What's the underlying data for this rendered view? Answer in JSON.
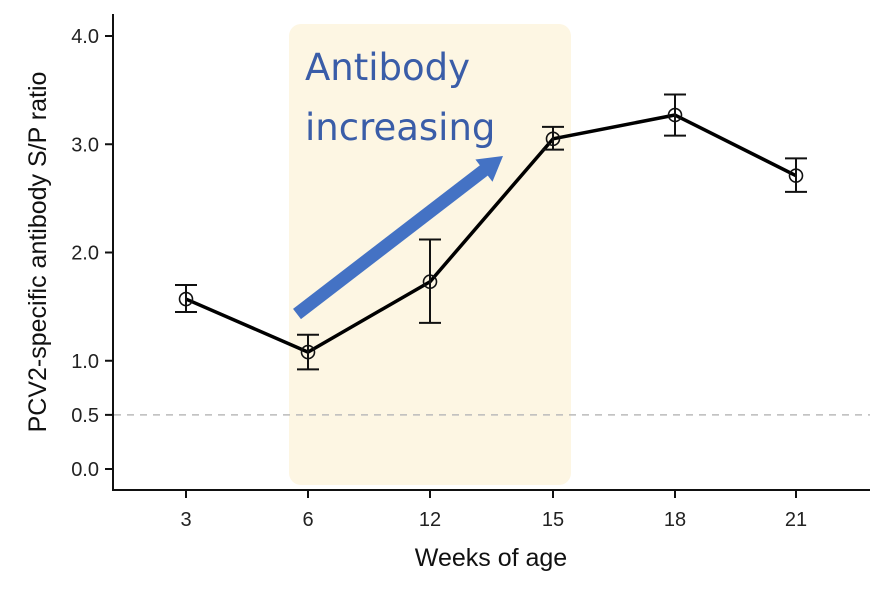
{
  "chart_data": {
    "type": "line",
    "title": "",
    "xlabel": "Weeks of age",
    "ylabel": "PCV2-specific antibody S/P ratio",
    "categories": [
      "3",
      "6",
      "12",
      "15",
      "18",
      "21"
    ],
    "series": [
      {
        "values": [
          1.57,
          1.08,
          1.73,
          3.05,
          3.27,
          2.71
        ],
        "error_low": [
          1.45,
          0.92,
          1.35,
          2.95,
          3.08,
          2.56
        ],
        "error_high": [
          1.7,
          1.24,
          2.12,
          3.16,
          3.46,
          2.87
        ]
      }
    ],
    "yticks": [
      0.0,
      0.5,
      1.0,
      2.0,
      3.0,
      4.0
    ],
    "ytick_labels": [
      "0.0",
      "0.5",
      "1.0",
      "2.0",
      "3.0",
      "4.0"
    ],
    "ylim": [
      -0.2,
      4.2
    ],
    "reference_line": {
      "y": 0.5,
      "style": "dashed"
    },
    "highlight": {
      "from_category": "6",
      "to_category": "15",
      "color": "#fdf6e3"
    },
    "annotation": {
      "lines": [
        "Antibody",
        "increasing"
      ],
      "color": "#3a5da8",
      "arrow_color": "#4472c4"
    },
    "grid": false,
    "legend": "none"
  }
}
